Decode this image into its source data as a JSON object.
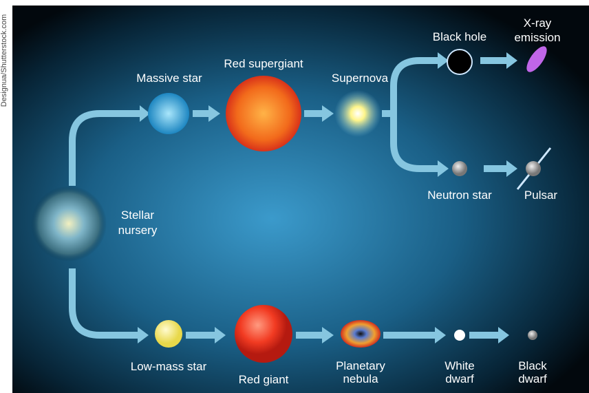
{
  "credit": "Designua/Shutterstock.com",
  "nodes": [
    {
      "label": [
        "Stellar",
        "nursery"
      ]
    },
    {
      "label": [
        "Massive star"
      ]
    },
    {
      "label": [
        "Red supergiant"
      ]
    },
    {
      "label": [
        "Supernova"
      ]
    },
    {
      "label": [
        "Black hole"
      ]
    },
    {
      "label": [
        "X-ray",
        "emission"
      ]
    },
    {
      "label": [
        "Neutron star"
      ]
    },
    {
      "label": [
        "Pulsar"
      ]
    },
    {
      "label": [
        "Low-mass star"
      ]
    },
    {
      "label": [
        "Red giant"
      ]
    },
    {
      "label": [
        "Planetary",
        "nebula"
      ]
    },
    {
      "label": [
        "White",
        "dwarf"
      ]
    },
    {
      "label": [
        "Black",
        "dwarf"
      ]
    }
  ]
}
